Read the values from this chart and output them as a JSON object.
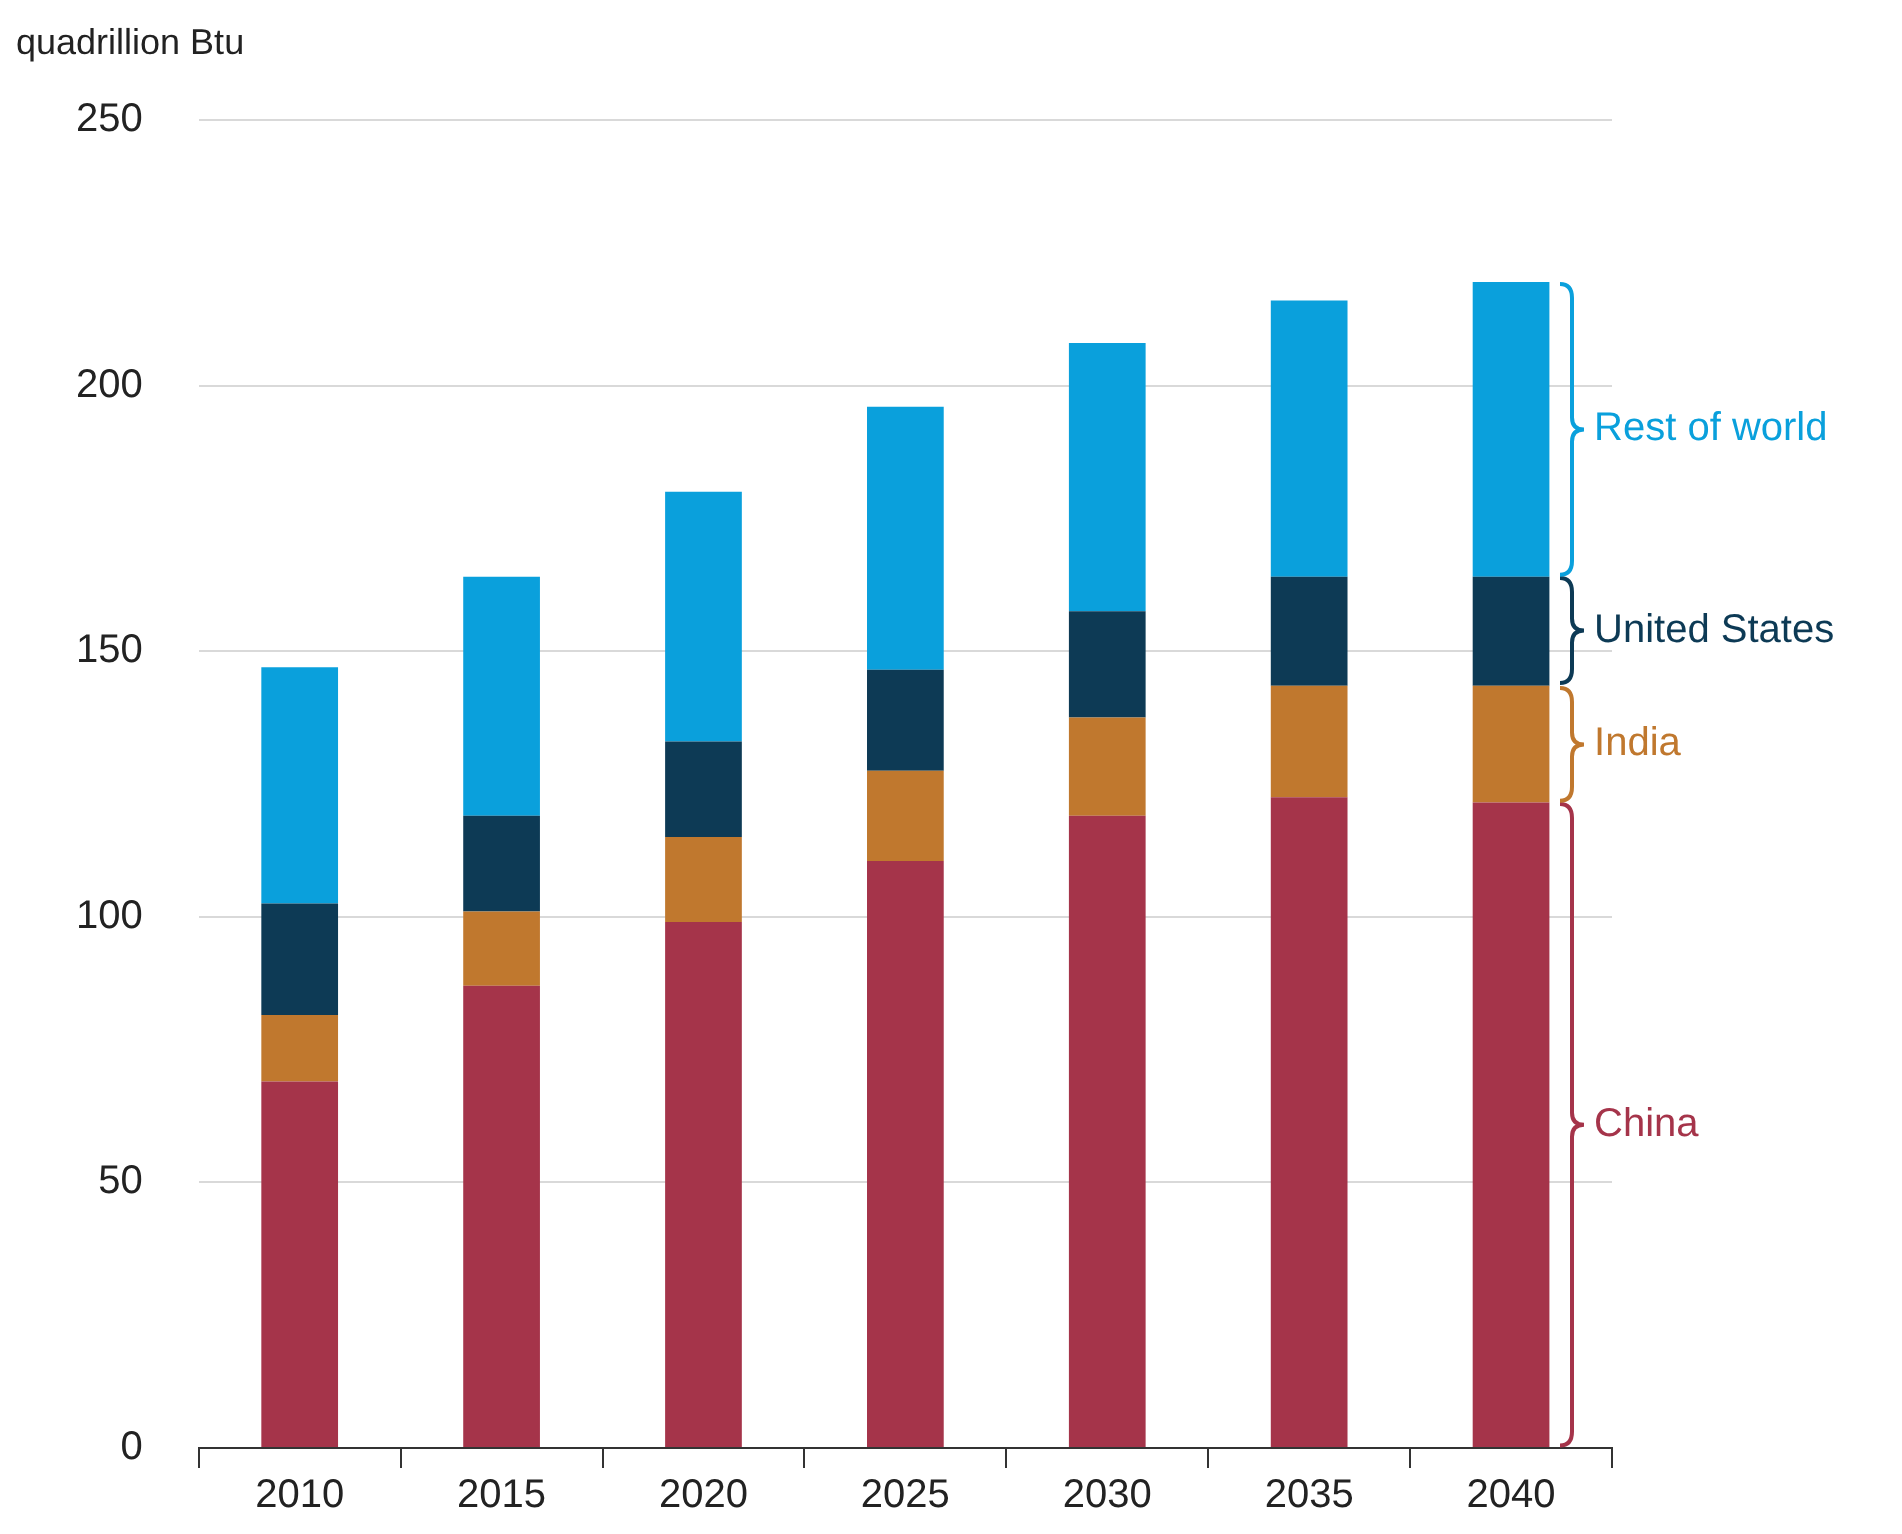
{
  "chart_data": {
    "type": "bar",
    "stacked": true,
    "ylabel": "quadrillion Btu",
    "categories": [
      "2010",
      "2015",
      "2020",
      "2025",
      "2030",
      "2035",
      "2040"
    ],
    "series": [
      {
        "name": "China",
        "color": "#a5344a",
        "values": [
          69,
          87,
          99,
          110.5,
          119,
          122.5,
          121.5
        ]
      },
      {
        "name": "India",
        "color": "#c0782e",
        "values": [
          12.5,
          14,
          16,
          17,
          18.5,
          21,
          22
        ]
      },
      {
        "name": "United States",
        "color": "#0d3a55",
        "values": [
          21,
          18,
          18,
          19,
          20,
          20.5,
          20.5
        ]
      },
      {
        "name": "Rest of world",
        "color": "#0aa0dc",
        "values": [
          44.5,
          45,
          47,
          49.5,
          50.5,
          52,
          55.5
        ]
      }
    ],
    "ylim": [
      0,
      250
    ],
    "yticks": [
      0,
      50,
      100,
      150,
      200,
      250
    ],
    "grid": "y",
    "legend": false
  }
}
